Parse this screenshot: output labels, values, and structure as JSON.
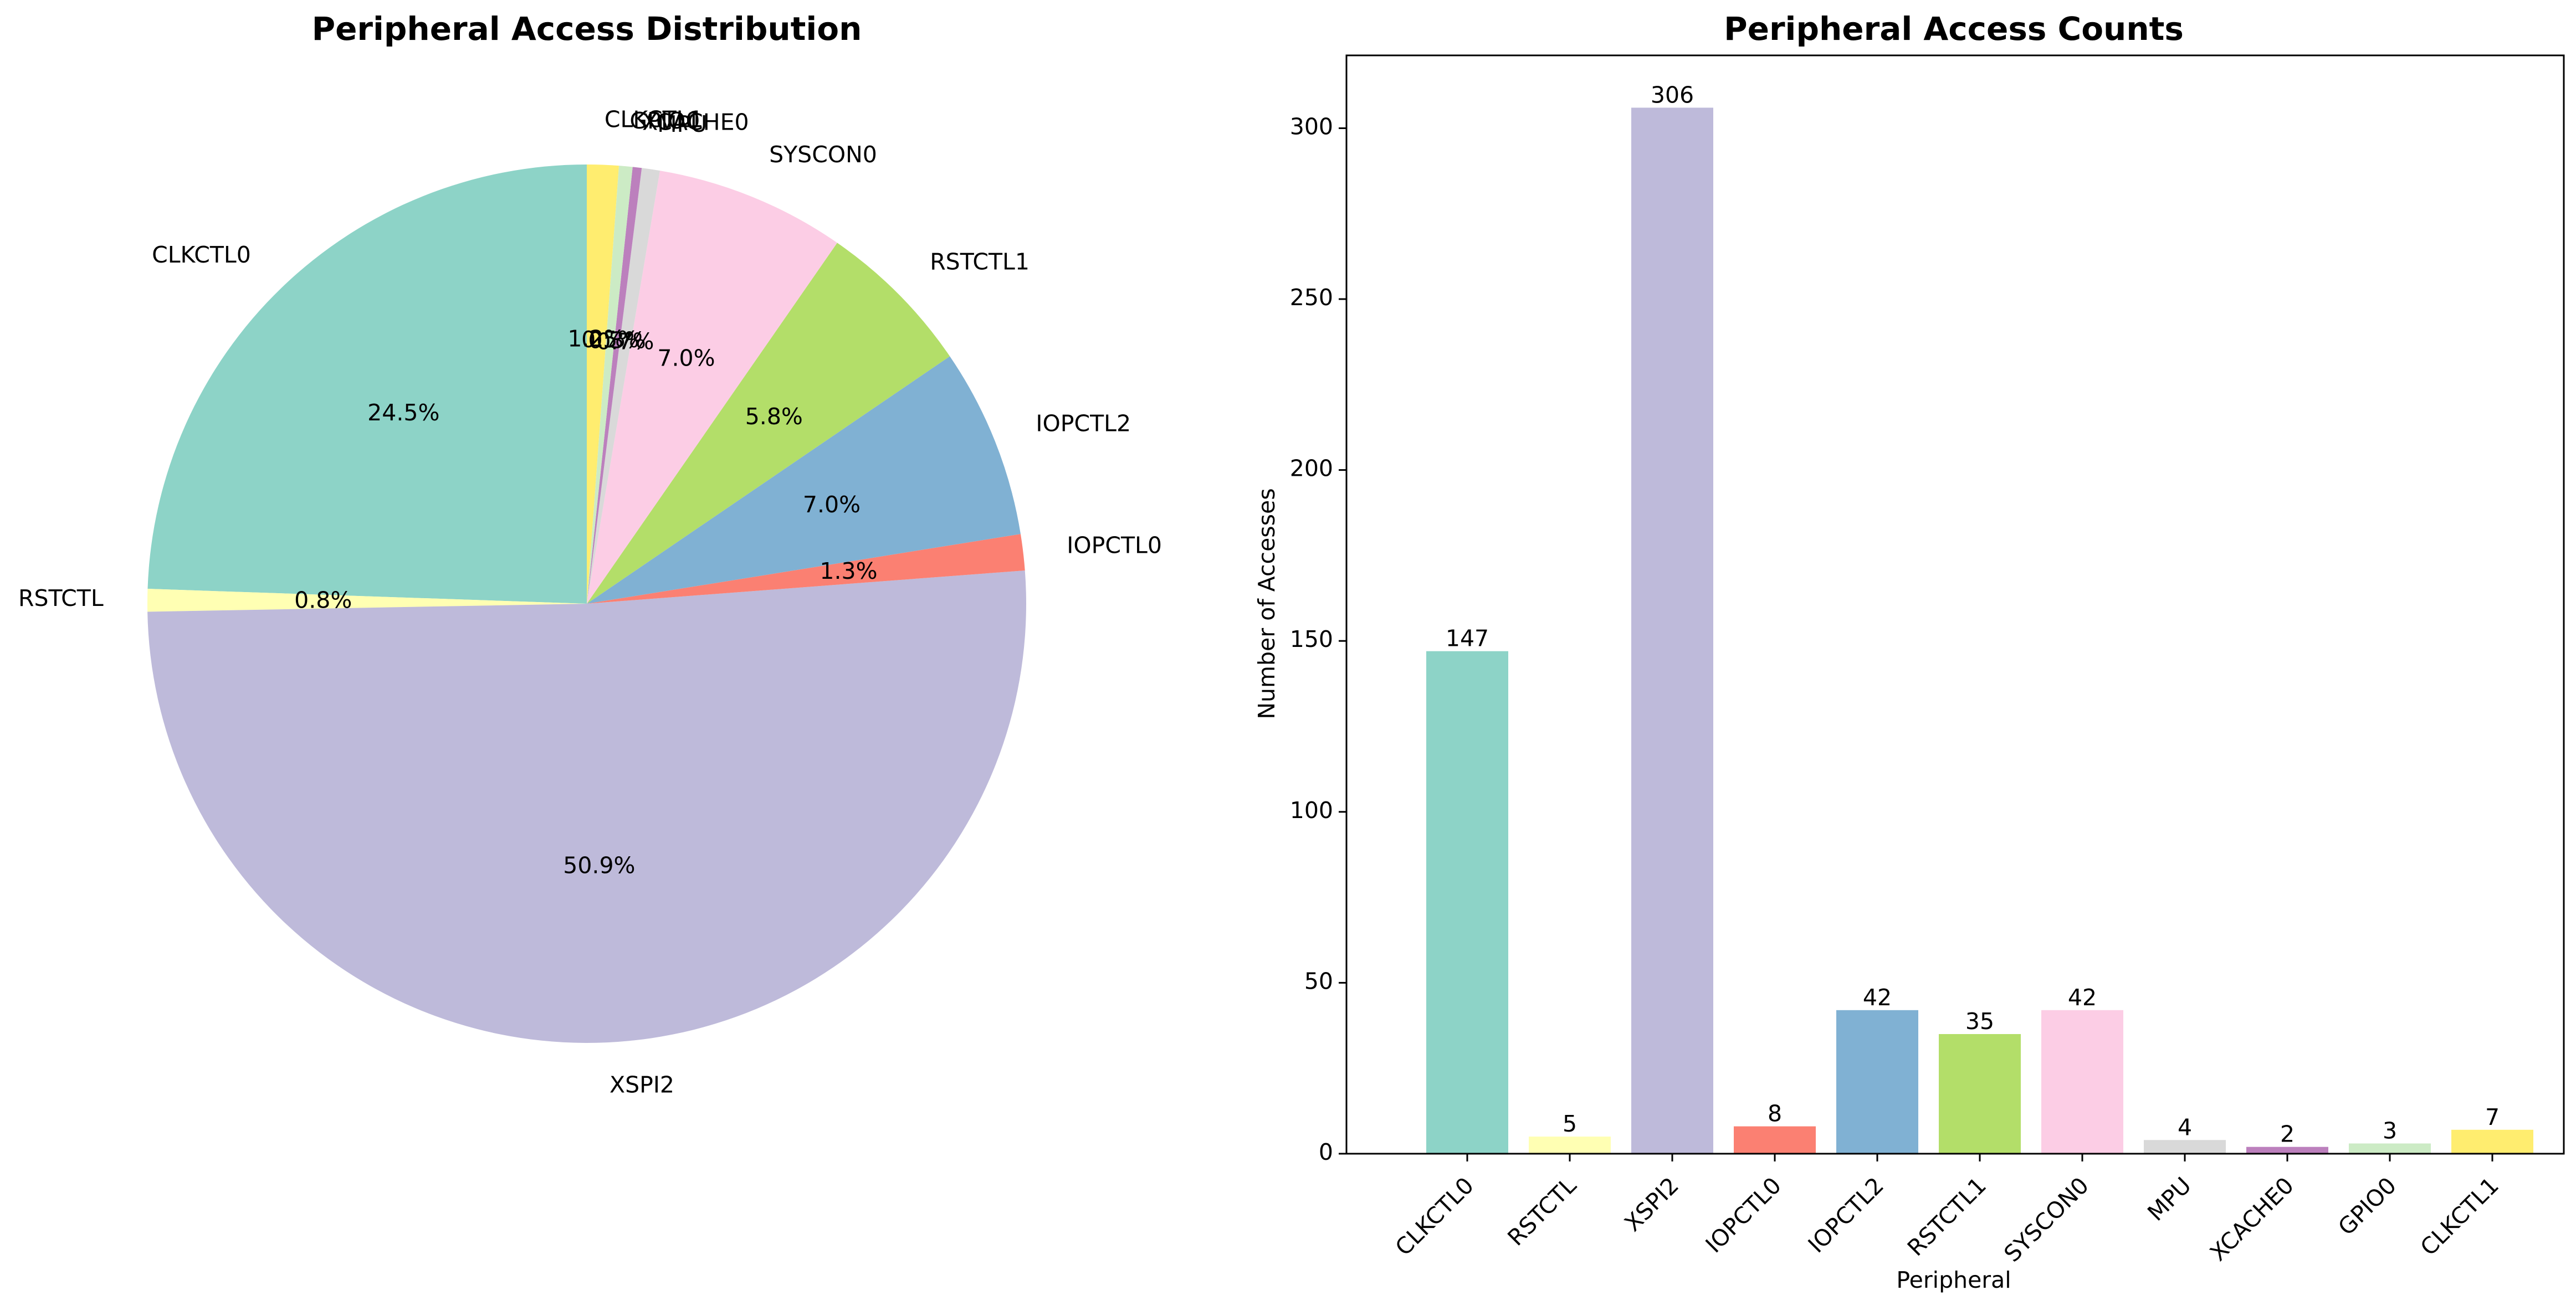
{
  "colors": [
    "#8dd3c7",
    "#ffffb3",
    "#bebada",
    "#fb8072",
    "#80b1d3",
    "#b3de69",
    "#fccde5",
    "#d9d9d9",
    "#bc80bd",
    "#ccebc5",
    "#ffed6f"
  ],
  "chart_data": [
    {
      "type": "pie",
      "title": "Peripheral Access Distribution",
      "labels": [
        "CLKCTL0",
        "RSTCTL",
        "XSPI2",
        "IOPCTL0",
        "IOPCTL2",
        "RSTCTL1",
        "SYSCON0",
        "MPU",
        "XCACHE0",
        "GPIO0",
        "CLKCTL1"
      ],
      "values": [
        147,
        5,
        306,
        8,
        42,
        35,
        42,
        4,
        2,
        3,
        7
      ],
      "percent_labels": [
        "24.5%",
        "0.8%",
        "50.9%",
        "1.3%",
        "7.0%",
        "5.8%",
        "7.0%",
        "0.7%",
        "0.3%",
        "0.5%",
        "1.2%"
      ],
      "start_angle": 90,
      "direction": "counterclockwise"
    },
    {
      "type": "bar",
      "title": "Peripheral Access Counts",
      "xlabel": "Peripheral",
      "ylabel": "Number of Accesses",
      "categories": [
        "CLKCTL0",
        "RSTCTL",
        "XSPI2",
        "IOPCTL0",
        "IOPCTL2",
        "RSTCTL1",
        "SYSCON0",
        "MPU",
        "XCACHE0",
        "GPIO0",
        "CLKCTL1"
      ],
      "values": [
        147,
        5,
        306,
        8,
        42,
        35,
        42,
        4,
        2,
        3,
        7
      ],
      "ylim": [
        0,
        321.3
      ],
      "yticks": [
        0,
        50,
        100,
        150,
        200,
        250,
        300
      ],
      "grid": false,
      "bar_value_labels": true
    }
  ]
}
